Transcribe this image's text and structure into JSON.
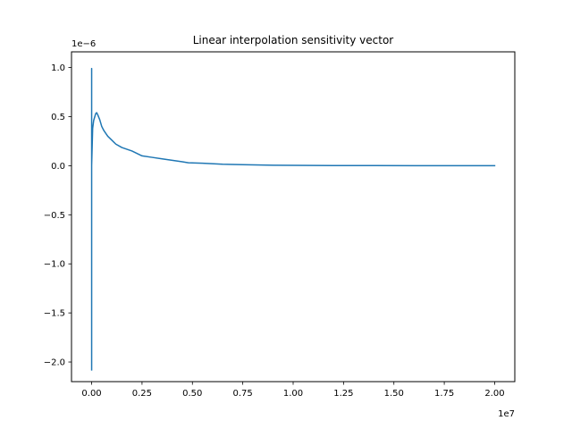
{
  "chart_data": {
    "type": "line",
    "title": "Linear interpolation sensitivity vector",
    "xlabel": "",
    "ylabel": "",
    "x_offset_label": "1e7",
    "y_offset_label": "1e−6",
    "xlim": [
      -1000000,
      21000000
    ],
    "ylim": [
      -2.2e-06,
      1.16e-06
    ],
    "grid": false,
    "legend": null,
    "x_ticks": [
      0,
      2500000,
      5000000,
      7500000,
      10000000,
      12500000,
      15000000,
      17500000,
      20000000
    ],
    "x_tick_labels": [
      "0.00",
      "0.25",
      "0.50",
      "0.75",
      "1.00",
      "1.25",
      "1.50",
      "1.75",
      "2.00"
    ],
    "y_ticks": [
      -2e-06,
      -1.5e-06,
      -1e-06,
      -5e-07,
      0,
      5e-07,
      1e-06
    ],
    "y_tick_labels": [
      "−2.0",
      "−1.5",
      "−1.0",
      "−0.5",
      "0.0",
      "0.5",
      "1.0"
    ],
    "series": [
      {
        "color": "#1f77b4",
        "x": [
          0,
          0,
          0,
          0,
          0,
          50000,
          100000,
          200000,
          250000,
          300000,
          400000,
          500000,
          600000,
          700000,
          800000,
          1000000,
          1200000,
          1500000,
          2000000,
          2500000,
          3000000,
          3500000,
          4000000,
          4500000,
          4800000,
          5500000,
          6500000,
          7500000,
          9000000,
          10000000,
          12000000,
          14000000,
          16000000,
          18000000,
          20000000
        ],
        "y": [
          -2.08e-06,
          9.9e-07,
          0,
          -2.08e-06,
          0,
          3.8e-07,
          4.6e-07,
          5.3e-07,
          5.4e-07,
          5.2e-07,
          4.7e-07,
          4e-07,
          3.6e-07,
          3.3e-07,
          3e-07,
          2.6e-07,
          2.2e-07,
          1.85e-07,
          1.5e-07,
          1e-07,
          8.5e-08,
          7e-08,
          5.5e-08,
          4e-08,
          3e-08,
          2.5e-08,
          1.5e-08,
          1e-08,
          5e-09,
          3e-09,
          1.5e-09,
          1e-09,
          5e-10,
          2e-10,
          0
        ]
      }
    ]
  }
}
